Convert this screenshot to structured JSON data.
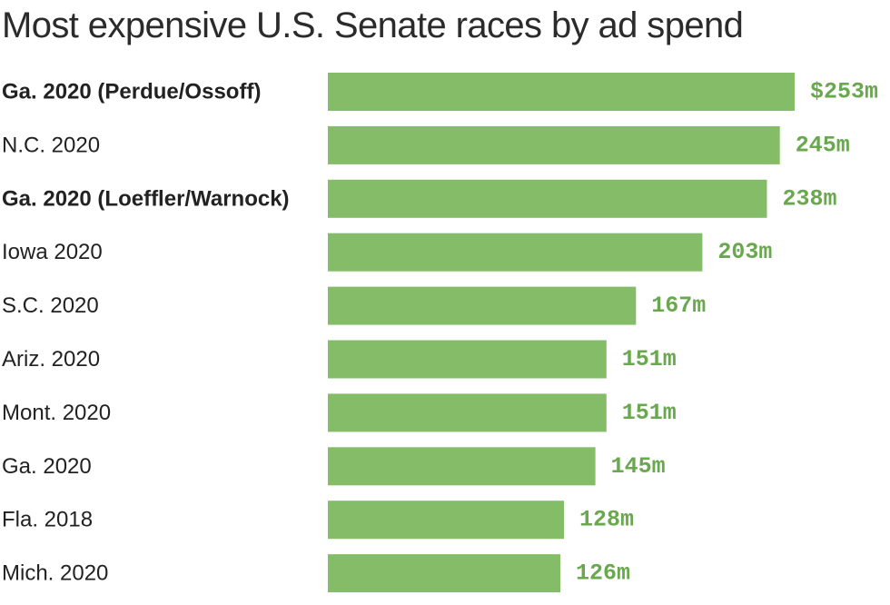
{
  "title": "Most expensive U.S. Senate races by ad spend",
  "colors": {
    "bar": "#85bc67",
    "value_text": "#6aa84f",
    "label_text": "#222222",
    "title_text": "#2b2b2b"
  },
  "chart_data": {
    "type": "bar",
    "orientation": "horizontal",
    "title": "Most expensive U.S. Senate races by ad spend",
    "categories": [
      "Ga. 2020 (Perdue/Ossoff)",
      "N.C. 2020",
      "Ga. 2020 (Loeffler/Warnock)",
      "Iowa 2020",
      "S.C. 2020",
      "Ariz. 2020",
      "Mont. 2020",
      "Ga. 2020",
      "Fla. 2018",
      "Mich. 2020"
    ],
    "bold_categories": [
      true,
      false,
      true,
      false,
      false,
      false,
      false,
      false,
      false,
      false
    ],
    "values": [
      253,
      245,
      238,
      203,
      167,
      151,
      151,
      145,
      128,
      126
    ],
    "value_labels": [
      "$253m",
      "245m",
      "238m",
      "203m",
      "167m",
      "151m",
      "151m",
      "145m",
      "128m",
      "126m"
    ],
    "xlim": [
      0,
      253
    ],
    "grid": false,
    "legend": "none"
  }
}
